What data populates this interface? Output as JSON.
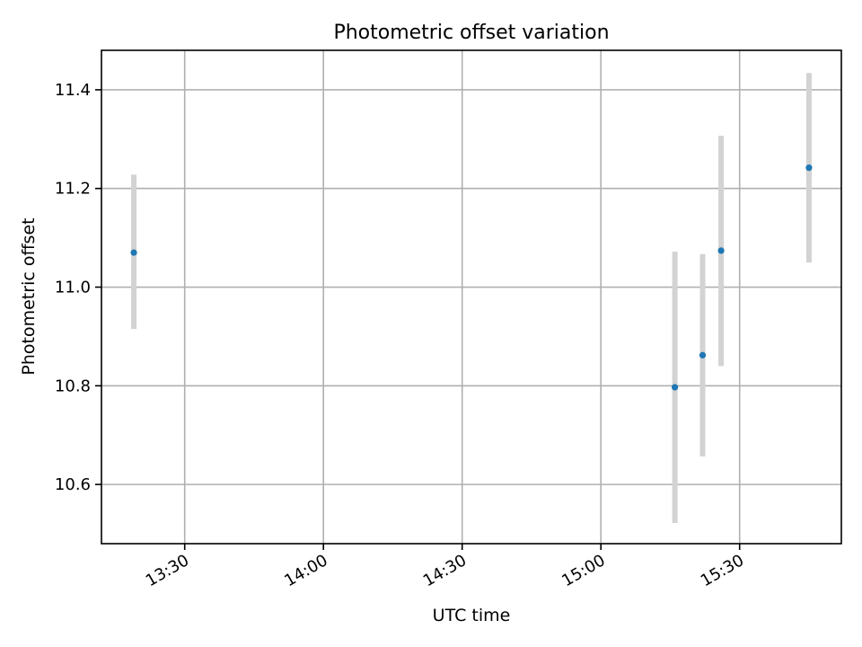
{
  "chart_data": {
    "type": "scatter",
    "title": "Photometric offset variation",
    "xlabel": "UTC time",
    "ylabel": "Photometric offset",
    "x_axis_kind": "time",
    "xlim": [
      "13:12",
      "15:52"
    ],
    "ylim": [
      10.48,
      11.48
    ],
    "x_ticks": [
      "13:30",
      "14:00",
      "14:30",
      "15:00",
      "15:30"
    ],
    "y_ticks": [
      "10.6",
      "10.8",
      "11.0",
      "11.2",
      "11.4"
    ],
    "grid": true,
    "series": [
      {
        "marker_color": "#1f77b4",
        "errorbar_color": "#d3d3d3",
        "points": [
          {
            "time": "13:19",
            "y": 11.07,
            "ylow": 10.915,
            "yhigh": 11.228
          },
          {
            "time": "15:16",
            "y": 10.797,
            "ylow": 10.522,
            "yhigh": 11.072
          },
          {
            "time": "15:22",
            "y": 10.862,
            "ylow": 10.657,
            "yhigh": 11.067
          },
          {
            "time": "15:26",
            "y": 11.074,
            "ylow": 10.84,
            "yhigh": 11.307
          },
          {
            "time": "15:45",
            "y": 11.242,
            "ylow": 11.05,
            "yhigh": 11.434
          }
        ]
      }
    ]
  }
}
